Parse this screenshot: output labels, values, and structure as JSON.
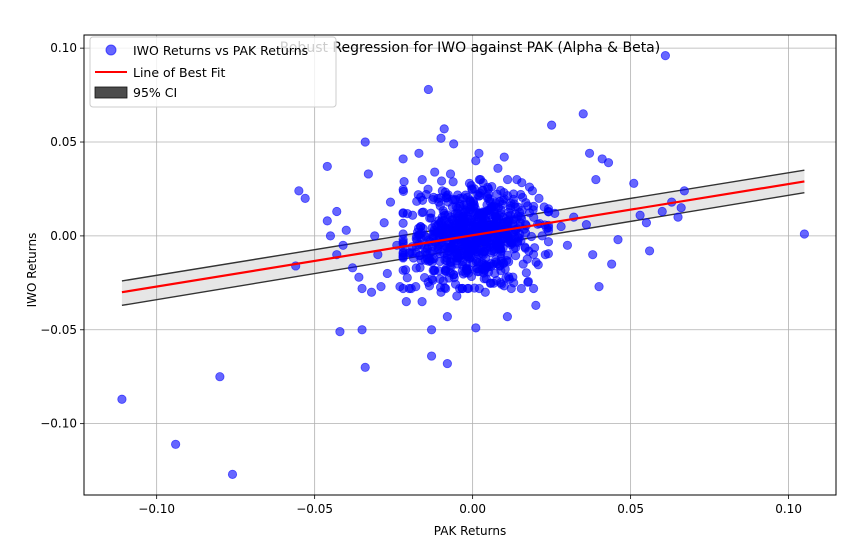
{
  "chart_data": {
    "type": "scatter",
    "title": "Robust Regression for IWO against PAK (Alpha & Beta)",
    "xlabel": "PAK Returns",
    "ylabel": "IWO Returns",
    "xlim": [
      -0.123,
      0.115
    ],
    "ylim": [
      -0.138,
      0.107
    ],
    "grid": true,
    "legend_position": "top-left",
    "x_ticks": [
      {
        "value": -0.1,
        "label": "−0.10"
      },
      {
        "value": -0.05,
        "label": "−0.05"
      },
      {
        "value": 0.0,
        "label": "0.00"
      },
      {
        "value": 0.05,
        "label": "0.05"
      },
      {
        "value": 0.1,
        "label": "0.10"
      }
    ],
    "y_ticks": [
      {
        "value": -0.1,
        "label": "−0.10"
      },
      {
        "value": -0.05,
        "label": "−0.05"
      },
      {
        "value": 0.0,
        "label": "0.00"
      },
      {
        "value": 0.05,
        "label": "0.05"
      },
      {
        "value": 0.1,
        "label": "0.10"
      }
    ],
    "series": [
      {
        "name": "IWO Returns vs PAK Returns",
        "kind": "scatter",
        "color": "#0000ff",
        "opacity": 0.6,
        "points": [
          [
            -0.111,
            -0.087
          ],
          [
            -0.094,
            -0.111
          ],
          [
            -0.08,
            -0.075
          ],
          [
            -0.076,
            -0.127
          ],
          [
            -0.056,
            -0.016
          ],
          [
            -0.055,
            0.024
          ],
          [
            -0.053,
            0.02
          ],
          [
            -0.046,
            0.037
          ],
          [
            -0.046,
            0.008
          ],
          [
            -0.045,
            0.0
          ],
          [
            -0.043,
            -0.01
          ],
          [
            -0.043,
            0.013
          ],
          [
            -0.042,
            -0.051
          ],
          [
            -0.041,
            -0.005
          ],
          [
            -0.04,
            0.003
          ],
          [
            -0.038,
            -0.017
          ],
          [
            -0.036,
            -0.022
          ],
          [
            -0.035,
            -0.028
          ],
          [
            -0.035,
            -0.05
          ],
          [
            -0.034,
            -0.07
          ],
          [
            -0.034,
            0.05
          ],
          [
            -0.033,
            0.033
          ],
          [
            -0.032,
            -0.03
          ],
          [
            -0.031,
            0.0
          ],
          [
            -0.03,
            -0.01
          ],
          [
            -0.029,
            -0.027
          ],
          [
            -0.028,
            0.007
          ],
          [
            -0.027,
            -0.02
          ],
          [
            -0.026,
            0.018
          ],
          [
            -0.024,
            -0.005
          ],
          [
            -0.023,
            -0.027
          ],
          [
            -0.022,
            0.041
          ],
          [
            -0.021,
            -0.035
          ],
          [
            -0.02,
            -0.009
          ],
          [
            -0.019,
            0.011
          ],
          [
            -0.018,
            -0.027
          ],
          [
            -0.017,
            0.044
          ],
          [
            -0.016,
            -0.035
          ],
          [
            -0.015,
            -0.013
          ],
          [
            -0.014,
            0.078
          ],
          [
            -0.013,
            -0.05
          ],
          [
            -0.013,
            -0.064
          ],
          [
            -0.012,
            0.034
          ],
          [
            -0.011,
            0.02
          ],
          [
            -0.01,
            -0.03
          ],
          [
            -0.01,
            0.052
          ],
          [
            -0.009,
            0.057
          ],
          [
            -0.008,
            -0.043
          ],
          [
            -0.008,
            -0.068
          ],
          [
            -0.007,
            0.033
          ],
          [
            -0.006,
            0.049
          ],
          [
            -0.005,
            -0.032
          ],
          [
            -0.004,
            0.02
          ],
          [
            -0.003,
            0.005
          ],
          [
            -0.002,
            -0.015
          ],
          [
            -0.001,
            0.028
          ],
          [
            0.0,
            -0.005
          ],
          [
            0.001,
            0.04
          ],
          [
            0.001,
            -0.049
          ],
          [
            0.002,
            0.044
          ],
          [
            0.003,
            0.01
          ],
          [
            0.004,
            -0.03
          ],
          [
            0.005,
            0.025
          ],
          [
            0.006,
            0.002
          ],
          [
            0.007,
            -0.02
          ],
          [
            0.008,
            0.036
          ],
          [
            0.009,
            -0.012
          ],
          [
            0.01,
            0.042
          ],
          [
            0.011,
            -0.043
          ],
          [
            0.012,
            0.016
          ],
          [
            0.013,
            -0.025
          ],
          [
            0.014,
            0.03
          ],
          [
            0.015,
            0.007
          ],
          [
            0.016,
            -0.015
          ],
          [
            0.018,
            0.026
          ],
          [
            0.02,
            -0.037
          ],
          [
            0.021,
            0.02
          ],
          [
            0.022,
            0.0
          ],
          [
            0.023,
            -0.01
          ],
          [
            0.025,
            0.059
          ],
          [
            0.026,
            0.012
          ],
          [
            0.028,
            0.005
          ],
          [
            0.03,
            -0.005
          ],
          [
            0.032,
            0.01
          ],
          [
            0.035,
            0.065
          ],
          [
            0.036,
            0.006
          ],
          [
            0.037,
            0.044
          ],
          [
            0.038,
            -0.01
          ],
          [
            0.039,
            0.03
          ],
          [
            0.04,
            -0.027
          ],
          [
            0.041,
            0.041
          ],
          [
            0.043,
            0.039
          ],
          [
            0.044,
            -0.015
          ],
          [
            0.046,
            -0.002
          ],
          [
            0.051,
            0.028
          ],
          [
            0.053,
            0.011
          ],
          [
            0.055,
            0.007
          ],
          [
            0.056,
            -0.008
          ],
          [
            0.06,
            0.013
          ],
          [
            0.061,
            0.096
          ],
          [
            0.063,
            0.018
          ],
          [
            0.065,
            0.01
          ],
          [
            0.066,
            0.015
          ],
          [
            0.067,
            0.024
          ],
          [
            0.105,
            0.001
          ]
        ],
        "core_cluster": {
          "count": 700,
          "x_range": [
            -0.022,
            0.024
          ],
          "y_range": [
            -0.028,
            0.03
          ],
          "center": [
            0.0,
            0.0
          ]
        }
      },
      {
        "name": "Line of Best Fit",
        "kind": "line",
        "color": "#ff0000",
        "x": [
          -0.111,
          0.105
        ],
        "y": [
          -0.03,
          0.029
        ]
      },
      {
        "name": "95% CI",
        "kind": "band",
        "color": "#333333",
        "x": [
          -0.111,
          0.105
        ],
        "upper": [
          -0.024,
          0.035
        ],
        "lower": [
          -0.037,
          0.023
        ]
      }
    ]
  }
}
